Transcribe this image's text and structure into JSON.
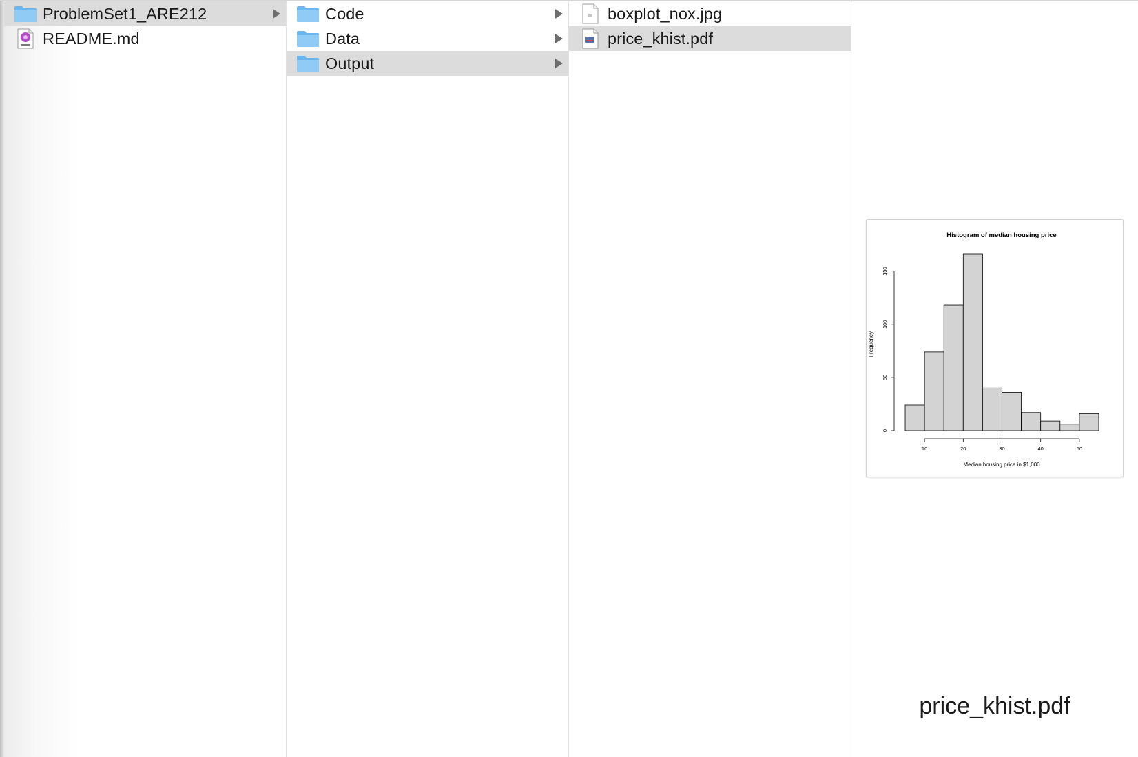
{
  "columns": [
    {
      "items": [
        {
          "label": "ProblemSet1_ARE212",
          "icon": "folder-icon",
          "selected": true,
          "has_children": true
        },
        {
          "label": "README.md",
          "icon": "markdown-file-icon",
          "selected": false,
          "has_children": false
        }
      ]
    },
    {
      "items": [
        {
          "label": "Code",
          "icon": "folder-icon",
          "selected": false,
          "has_children": true
        },
        {
          "label": "Data",
          "icon": "folder-icon",
          "selected": false,
          "has_children": true
        },
        {
          "label": "Output",
          "icon": "folder-icon",
          "selected": true,
          "has_children": true
        }
      ]
    },
    {
      "items": [
        {
          "label": "boxplot_nox.jpg",
          "icon": "image-file-icon",
          "selected": false,
          "has_children": false
        },
        {
          "label": "price_khist.pdf",
          "icon": "pdf-file-icon",
          "selected": true,
          "has_children": false
        }
      ]
    }
  ],
  "preview": {
    "filename": "price_khist.pdf",
    "chart_data": {
      "type": "bar",
      "title": "Histogram of median housing price",
      "xlabel": "Median housing price in $1,000",
      "ylabel": "Frequency",
      "bin_edges": [
        5,
        10,
        15,
        20,
        25,
        30,
        35,
        40,
        45,
        50,
        55
      ],
      "values": [
        24,
        74,
        118,
        166,
        40,
        36,
        17,
        9,
        6,
        16
      ],
      "xticks": [
        10,
        20,
        30,
        40,
        50
      ],
      "yticks": [
        0,
        50,
        100,
        150
      ],
      "xlim": [
        5,
        55
      ],
      "ylim": [
        0,
        166
      ],
      "bar_fill": "#d3d3d3",
      "bar_stroke": "#000000"
    }
  }
}
